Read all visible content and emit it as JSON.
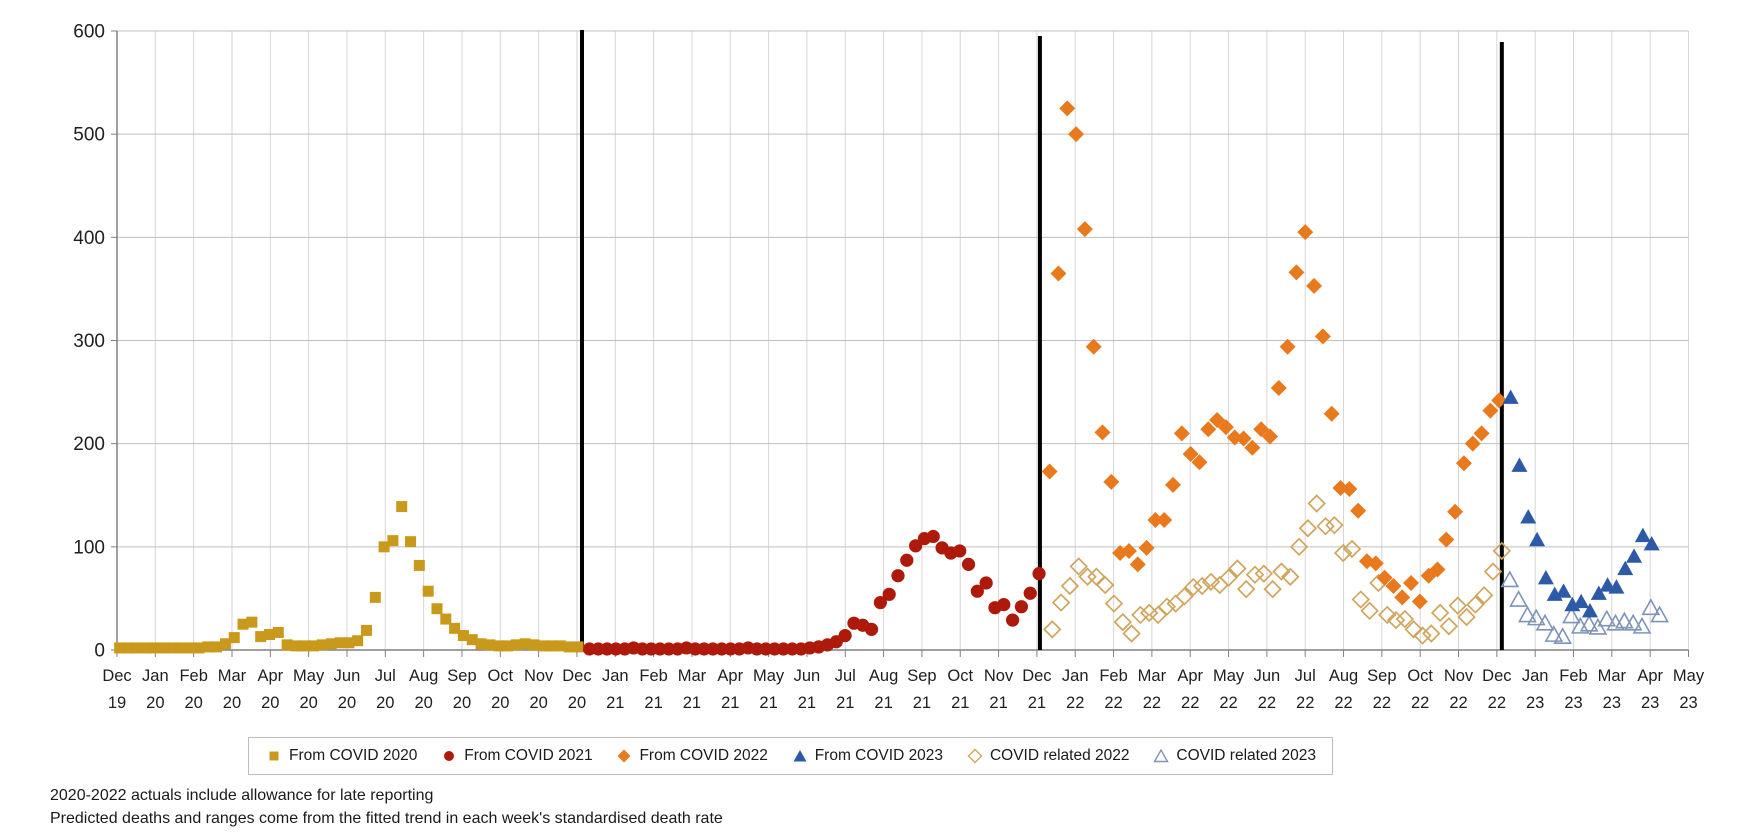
{
  "window": {
    "background": "#FFFFFF"
  },
  "chart_data": {
    "type": "scatter",
    "title": "",
    "xlabel": "",
    "ylabel": "",
    "ylim": [
      0,
      600
    ],
    "y_ticks": [
      0,
      100,
      200,
      300,
      400,
      500,
      600
    ],
    "grid": true,
    "legend_position": "bottom",
    "x_ticks": [
      [
        "Dec",
        "19"
      ],
      [
        "Jan",
        "20"
      ],
      [
        "Feb",
        "20"
      ],
      [
        "Mar",
        "20"
      ],
      [
        "Apr",
        "20"
      ],
      [
        "May",
        "20"
      ],
      [
        "Jun",
        "20"
      ],
      [
        "Jul",
        "20"
      ],
      [
        "Aug",
        "20"
      ],
      [
        "Sep",
        "20"
      ],
      [
        "Oct",
        "20"
      ],
      [
        "Nov",
        "20"
      ],
      [
        "Dec",
        "20"
      ],
      [
        "Jan",
        "21"
      ],
      [
        "Feb",
        "21"
      ],
      [
        "Mar",
        "21"
      ],
      [
        "Apr",
        "21"
      ],
      [
        "May",
        "21"
      ],
      [
        "Jun",
        "21"
      ],
      [
        "Jul",
        "21"
      ],
      [
        "Aug",
        "21"
      ],
      [
        "Sep",
        "21"
      ],
      [
        "Oct",
        "21"
      ],
      [
        "Nov",
        "21"
      ],
      [
        "Dec",
        "21"
      ],
      [
        "Jan",
        "22"
      ],
      [
        "Feb",
        "22"
      ],
      [
        "Mar",
        "22"
      ],
      [
        "Apr",
        "22"
      ],
      [
        "May",
        "22"
      ],
      [
        "Jun",
        "22"
      ],
      [
        "Jul",
        "22"
      ],
      [
        "Aug",
        "22"
      ],
      [
        "Sep",
        "22"
      ],
      [
        "Oct",
        "22"
      ],
      [
        "Nov",
        "22"
      ],
      [
        "Dec",
        "22"
      ],
      [
        "Jan",
        "23"
      ],
      [
        "Feb",
        "23"
      ],
      [
        "Mar",
        "23"
      ],
      [
        "Apr",
        "23"
      ],
      [
        "May",
        "23"
      ]
    ],
    "separators": [
      {
        "week": 52.75,
        "top": 30
      },
      {
        "week": 104.7,
        "top": 36
      },
      {
        "week": 157.1,
        "top": 42
      }
    ],
    "axis_colors": {
      "grid_v": "#D6D6D6",
      "grid_h": "#BFBFBF",
      "spine": "#808080",
      "separator": "#000000",
      "text": "#1F1F1F"
    },
    "series": [
      {
        "name": "From COVID 2020",
        "marker": "square",
        "filled": true,
        "color": "#C9991B",
        "start_week": 0.3,
        "weekly_values": [
          2,
          2,
          2,
          2,
          2,
          2,
          2,
          2,
          2,
          2,
          3,
          3,
          6,
          12,
          25,
          27,
          13,
          15,
          17,
          5,
          4,
          4,
          4,
          5,
          6,
          7,
          7,
          9,
          19,
          51,
          100,
          106,
          139,
          105,
          82,
          57,
          40,
          30,
          21,
          14,
          10,
          6,
          5,
          4,
          4,
          5,
          6,
          5,
          4,
          4,
          4,
          3,
          3
        ]
      },
      {
        "name": "From COVID 2021",
        "marker": "circle",
        "filled": true,
        "color": "#AD1A0B",
        "start_week": 53.6,
        "weekly_values": [
          1,
          1,
          1,
          1,
          1,
          2,
          1,
          1,
          1,
          1,
          1,
          2,
          1,
          1,
          1,
          1,
          1,
          1,
          2,
          1,
          1,
          1,
          1,
          1,
          1,
          2,
          3,
          5,
          8,
          14,
          26,
          24,
          20,
          46,
          54,
          72,
          87,
          101,
          108,
          110,
          99,
          94,
          96,
          83,
          57,
          65,
          41,
          44,
          29,
          42,
          55,
          74
        ]
      },
      {
        "name": "From COVID 2022",
        "marker": "diamond",
        "filled": true,
        "color": "#E8791D",
        "start_week": 105.8,
        "weekly_values": [
          173,
          365,
          525,
          500,
          408,
          294,
          211,
          163,
          94,
          96,
          83,
          99,
          126,
          126,
          160,
          210,
          190,
          182,
          214,
          223,
          216,
          206,
          205,
          196,
          214,
          207,
          254,
          294,
          366,
          405,
          353,
          304,
          229,
          157,
          156,
          135,
          86,
          84,
          70,
          62,
          51,
          65,
          47,
          72,
          78,
          107,
          134,
          181,
          200,
          210,
          232,
          242
        ]
      },
      {
        "name": "From COVID 2023",
        "marker": "triangle",
        "filled": true,
        "color": "#2D5AA6",
        "start_week": 158.1,
        "weekly_values": [
          245,
          179,
          129,
          107,
          70,
          54,
          57,
          44,
          47,
          38,
          55,
          63,
          61,
          79,
          91,
          111,
          103
        ]
      },
      {
        "name": "COVID related 2022",
        "marker": "diamond",
        "filled": false,
        "color": "#CFA55E",
        "start_week": 106.1,
        "weekly_values": [
          20,
          46,
          62,
          81,
          71,
          71,
          63,
          45,
          27,
          16,
          34,
          36,
          34,
          42,
          45,
          52,
          61,
          62,
          66,
          63,
          70,
          79,
          59,
          73,
          74,
          59,
          76,
          71,
          100,
          118,
          142,
          120,
          121,
          94,
          98,
          49,
          38,
          65,
          34,
          29,
          30,
          20,
          14,
          16,
          36,
          23,
          43,
          32,
          44,
          53,
          76,
          96
        ]
      },
      {
        "name": "COVID related 2023",
        "marker": "triangle",
        "filled": false,
        "color": "#7E93B8",
        "start_week": 158.0,
        "weekly_values": [
          68,
          49,
          34,
          31,
          26,
          15,
          13,
          33,
          23,
          25,
          22,
          30,
          26,
          28,
          26,
          23,
          41,
          34
        ]
      }
    ]
  },
  "legend": {
    "items": [
      "From COVID 2020",
      "From COVID 2021",
      "From COVID 2022",
      "From COVID 2023",
      "COVID related 2022",
      "COVID related 2023"
    ]
  },
  "footnotes": {
    "line1": "2020-2022  actuals include allowance for late reporting",
    "line2": "Predicted deaths and ranges come from the fitted trend in each week's standardised death rate"
  }
}
